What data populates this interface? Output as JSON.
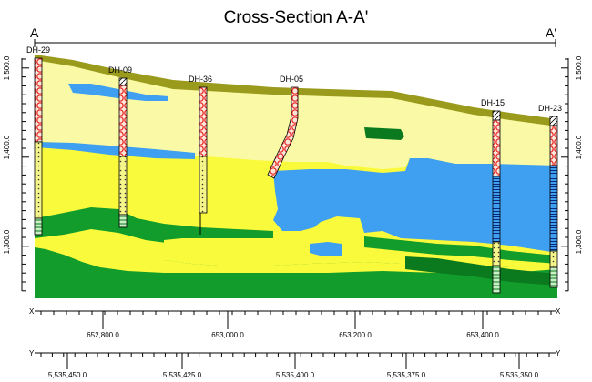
{
  "title": "Cross-Section A-A'",
  "section_start_label": "A",
  "section_end_label": "A'",
  "elevation_axis": {
    "labels": [
      "1,500.0",
      "1,400.0",
      "1,300.0"
    ],
    "values": [
      1500,
      1400,
      1300
    ]
  },
  "x_axis": {
    "letter": "X",
    "labels": [
      "652,800.0",
      "653,000.0",
      "653,200.0",
      "653,400.0"
    ]
  },
  "y_axis": {
    "letter": "Y",
    "labels": [
      "5,535,450.0",
      "5,535,425.0",
      "5,535,400.0",
      "5,535,375.0",
      "5,535,350.0"
    ]
  },
  "drillholes": [
    {
      "name": "DH-29"
    },
    {
      "name": "DH-09"
    },
    {
      "name": "DH-36"
    },
    {
      "name": "DH-05"
    },
    {
      "name": "DH-15"
    },
    {
      "name": "DH-23"
    }
  ],
  "colors": {
    "olive_cap": "#9a9a1c",
    "pale_yellow": "#fafaa6",
    "bright_yellow": "#fafa3c",
    "blue": "#3f9ff0",
    "green": "#119c2b",
    "dark_green": "#0b7a1f",
    "hole_red": "#e8201e",
    "hole_pink": "#fbe0d6"
  }
}
